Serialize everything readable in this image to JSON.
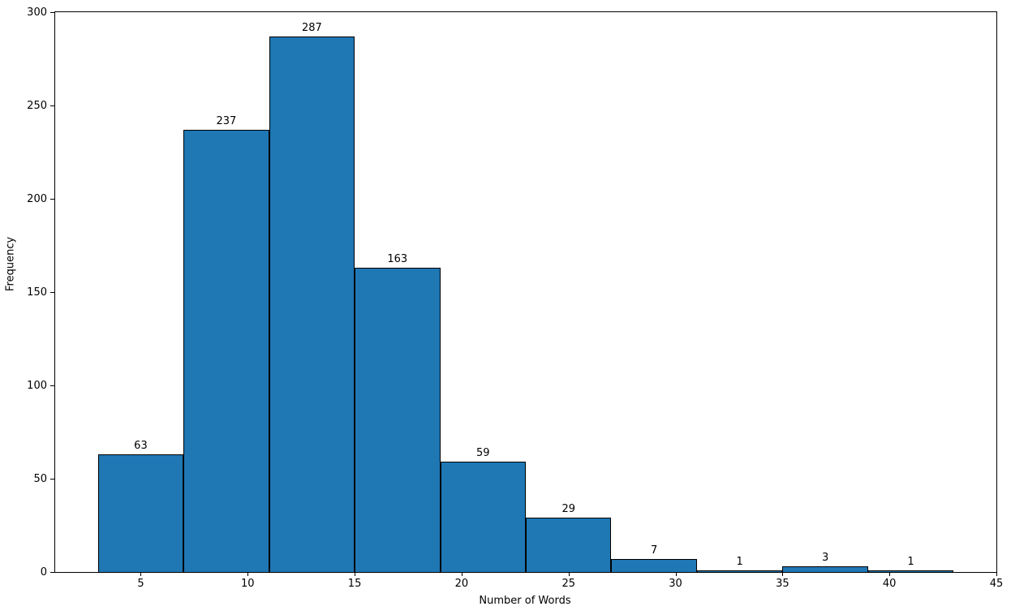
{
  "chart_data": {
    "type": "bar",
    "subtype": "histogram",
    "title": "",
    "xlabel": "Number of Words",
    "ylabel": "Frequency",
    "xlim": [
      1,
      45
    ],
    "ylim": [
      0,
      300
    ],
    "x_ticks": [
      5,
      10,
      15,
      20,
      25,
      30,
      35,
      40,
      45
    ],
    "y_ticks": [
      0,
      50,
      100,
      150,
      200,
      250,
      300
    ],
    "bin_edges": [
      3,
      7,
      11,
      15,
      19,
      23,
      27,
      31,
      35,
      39,
      43
    ],
    "values": [
      63,
      237,
      287,
      163,
      59,
      29,
      7,
      1,
      3,
      1
    ],
    "bar_labels": [
      "63",
      "237",
      "287",
      "163",
      "59",
      "29",
      "7",
      "1",
      "3",
      "1"
    ],
    "bar_color": "#1f77b4",
    "bar_edge_color": "#000000",
    "axis_color": "#000000",
    "grid": false,
    "legend_position": "none"
  }
}
